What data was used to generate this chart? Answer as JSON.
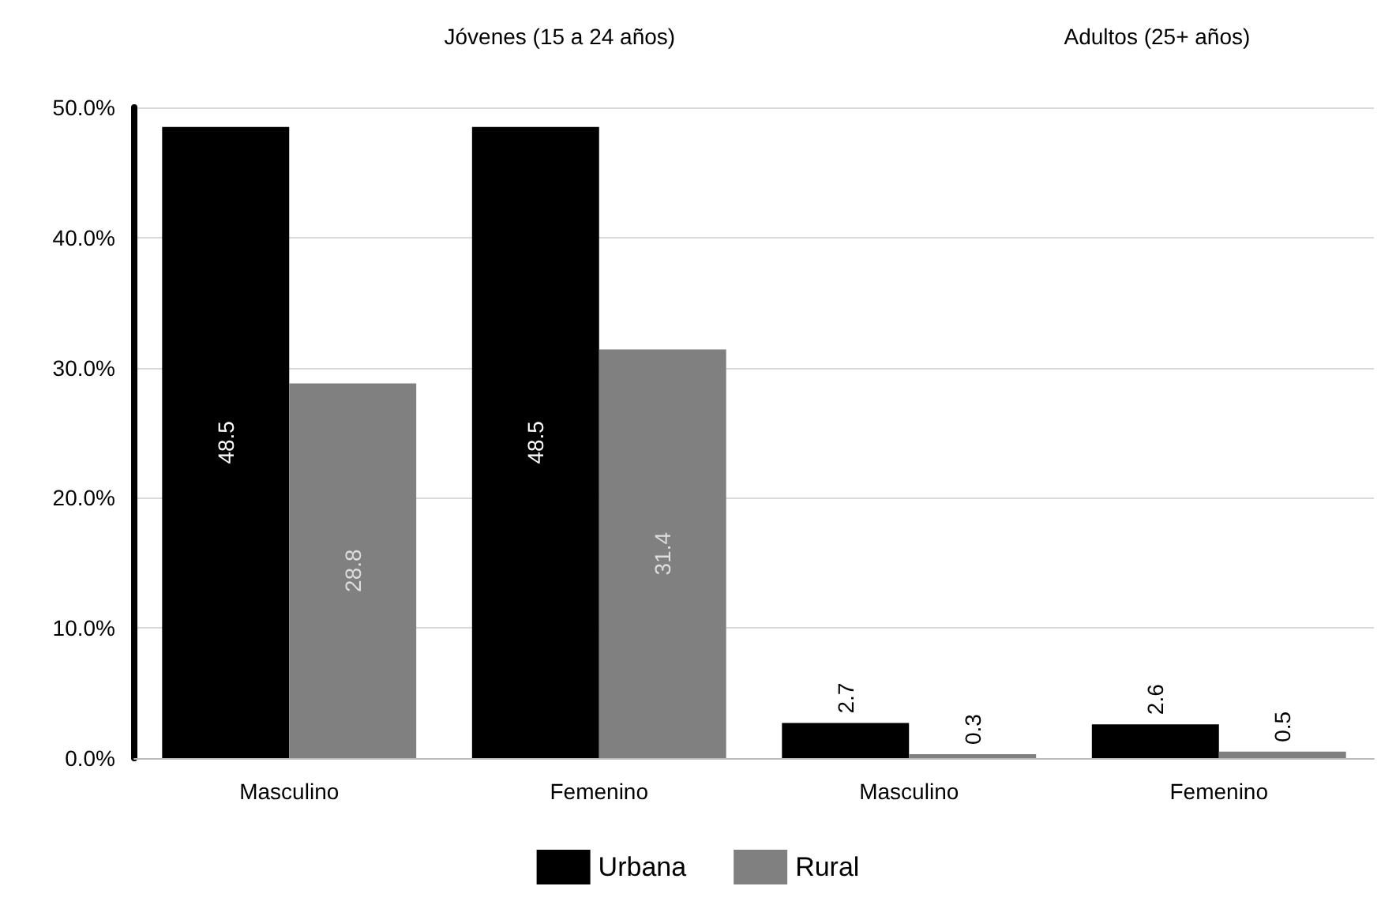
{
  "chart_data": {
    "type": "bar",
    "categories": [
      "Masculino",
      "Femenino",
      "Masculino",
      "Femenino"
    ],
    "series": [
      {
        "name": "Urbana",
        "color": "#000000",
        "values": [
          48.5,
          48.5,
          2.7,
          2.6
        ]
      },
      {
        "name": "Rural",
        "color": "#808080",
        "values": [
          28.8,
          31.4,
          0.3,
          0.5
        ]
      }
    ],
    "annotations": [
      "Jóvenes (15 a 24 años)",
      "Adultos (25+ años)"
    ],
    "ylim": [
      0,
      50
    ],
    "yticks": [
      {
        "value": 0,
        "label": "0.0%"
      },
      {
        "value": 10,
        "label": "10.0%"
      },
      {
        "value": 20,
        "label": "20.0%"
      },
      {
        "value": 30,
        "label": "30.0%"
      },
      {
        "value": 40,
        "label": "40.0%"
      },
      {
        "value": 50,
        "label": "50.0%"
      }
    ],
    "grid": "y",
    "legend": "bottom",
    "data_labels": true
  }
}
